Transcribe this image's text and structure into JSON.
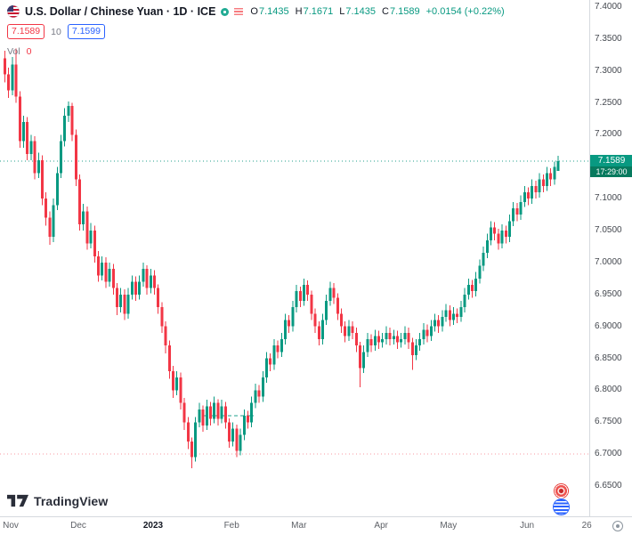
{
  "header": {
    "title": "U.S. Dollar / Chinese Yuan · 1D · ICE",
    "ohlc": {
      "o_label": "O",
      "open": "7.1435",
      "h_label": "H",
      "high": "7.1671",
      "l_label": "L",
      "low": "7.1435",
      "c_label": "C",
      "close": "7.1589",
      "change": "+0.0154 (+0.22%)"
    },
    "series_row": {
      "left_value": "7.1589",
      "length": "10",
      "right_value": "7.1599"
    },
    "volume": {
      "label": "Vol",
      "value": "0"
    }
  },
  "price_axis": {
    "badge": {
      "price": 7.1589,
      "text": "7.1589",
      "countdown": "17:29:00"
    }
  },
  "footer": {
    "logo_text": "TradingView"
  },
  "colors": {
    "up_candle": "#089981",
    "down_candle": "#f23645",
    "badge_green": "#089981",
    "countdown_green": "#077a5e",
    "badge_red": "#f23645",
    "badge_blue": "#2962ff",
    "change_green": "#089981",
    "axis_text": "#44484f"
  },
  "chart_data": {
    "type": "candlestick",
    "title": "U.S. Dollar / Chinese Yuan · 1D · ICE",
    "ylim": [
      6.65,
      7.4
    ],
    "grid": false,
    "last_price": 7.1589,
    "y_ticks": [
      {
        "price": 7.4,
        "text": "7.4000"
      },
      {
        "price": 7.35,
        "text": "7.3500"
      },
      {
        "price": 7.3,
        "text": "7.3000"
      },
      {
        "price": 7.25,
        "text": "7.2500"
      },
      {
        "price": 7.2,
        "text": "7.2000"
      },
      {
        "price": 7.1,
        "text": "7.1000"
      },
      {
        "price": 7.05,
        "text": "7.0500"
      },
      {
        "price": 7.0,
        "text": "7.0000"
      },
      {
        "price": 6.95,
        "text": "6.9500"
      },
      {
        "price": 6.9,
        "text": "6.9000"
      },
      {
        "price": 6.85,
        "text": "6.8500"
      },
      {
        "price": 6.8,
        "text": "6.8000"
      },
      {
        "price": 6.75,
        "text": "6.7500"
      },
      {
        "price": 6.7,
        "text": "6.7000"
      },
      {
        "price": 6.65,
        "text": "6.6500"
      }
    ],
    "x_ticks": [
      {
        "label": "Nov",
        "index": 0
      },
      {
        "label": "Dec",
        "index": 20
      },
      {
        "label": "2023",
        "index": 40,
        "year": true
      },
      {
        "label": "Feb",
        "index": 61
      },
      {
        "label": "Mar",
        "index": 79
      },
      {
        "label": "Apr",
        "index": 101
      },
      {
        "label": "May",
        "index": 119
      },
      {
        "label": "Jun",
        "index": 140
      },
      {
        "label": "26",
        "index": 156
      }
    ],
    "levels": [
      {
        "name": "last-price-line",
        "price": 7.1589,
        "color": "#089981",
        "style": "dotted",
        "opacity": 0.9
      },
      {
        "name": "low-level-line",
        "price": 6.7,
        "color": "#f23645",
        "style": "dotted",
        "opacity": 0.5
      },
      {
        "name": "support-segment",
        "price": 6.76,
        "x1": 228,
        "x2": 285,
        "color": "#089981",
        "style": "dashed",
        "opacity": 0.9
      }
    ],
    "ohlc_order": [
      "open",
      "high",
      "low",
      "close"
    ],
    "candles": [
      [
        7.32,
        7.332,
        7.282,
        7.295
      ],
      [
        7.295,
        7.305,
        7.258,
        7.27
      ],
      [
        7.27,
        7.322,
        7.262,
        7.31
      ],
      [
        7.31,
        7.335,
        7.25,
        7.26
      ],
      [
        7.26,
        7.268,
        7.18,
        7.19
      ],
      [
        7.19,
        7.23,
        7.18,
        7.22
      ],
      [
        7.22,
        7.228,
        7.16,
        7.17
      ],
      [
        7.17,
        7.2,
        7.16,
        7.19
      ],
      [
        7.19,
        7.198,
        7.13,
        7.14
      ],
      [
        7.14,
        7.172,
        7.132,
        7.16
      ],
      [
        7.16,
        7.168,
        7.09,
        7.1
      ],
      [
        7.1,
        7.11,
        7.058,
        7.07
      ],
      [
        7.07,
        7.08,
        7.028,
        7.04
      ],
      [
        7.04,
        7.1,
        7.032,
        7.09
      ],
      [
        7.09,
        7.15,
        7.082,
        7.14
      ],
      [
        7.14,
        7.2,
        7.132,
        7.19
      ],
      [
        7.19,
        7.242,
        7.182,
        7.23
      ],
      [
        7.23,
        7.252,
        7.22,
        7.245
      ],
      [
        7.245,
        7.25,
        7.19,
        7.2
      ],
      [
        7.2,
        7.208,
        7.12,
        7.13
      ],
      [
        7.13,
        7.138,
        7.05,
        7.06
      ],
      [
        7.06,
        7.092,
        7.05,
        7.08
      ],
      [
        7.08,
        7.088,
        7.02,
        7.03
      ],
      [
        7.03,
        7.062,
        7.022,
        7.05
      ],
      [
        7.05,
        7.058,
        7.0,
        7.01
      ],
      [
        7.01,
        7.018,
        6.97,
        6.98
      ],
      [
        6.98,
        7.01,
        6.972,
        7.0
      ],
      [
        7.0,
        7.008,
        6.96,
        6.97
      ],
      [
        6.97,
        7.0,
        6.962,
        6.99
      ],
      [
        6.99,
        6.998,
        6.95,
        6.96
      ],
      [
        6.96,
        6.968,
        6.918,
        6.93
      ],
      [
        6.93,
        6.96,
        6.922,
        6.95
      ],
      [
        6.95,
        6.958,
        6.91,
        6.92
      ],
      [
        6.92,
        6.96,
        6.912,
        6.95
      ],
      [
        6.95,
        6.98,
        6.942,
        6.97
      ],
      [
        6.97,
        6.978,
        6.94,
        6.95
      ],
      [
        6.95,
        6.98,
        6.942,
        6.97
      ],
      [
        6.97,
        7.0,
        6.962,
        6.99
      ],
      [
        6.99,
        6.996,
        6.95,
        6.96
      ],
      [
        6.96,
        6.99,
        6.952,
        6.98
      ],
      [
        6.98,
        6.988,
        6.95,
        6.96
      ],
      [
        6.96,
        6.966,
        6.92,
        6.93
      ],
      [
        6.93,
        6.938,
        6.89,
        6.9
      ],
      [
        6.9,
        6.908,
        6.858,
        6.87
      ],
      [
        6.87,
        6.878,
        6.818,
        6.83
      ],
      [
        6.83,
        6.838,
        6.788,
        6.8
      ],
      [
        6.8,
        6.83,
        6.792,
        6.82
      ],
      [
        6.82,
        6.828,
        6.77,
        6.78
      ],
      [
        6.78,
        6.788,
        6.738,
        6.75
      ],
      [
        6.75,
        6.758,
        6.708,
        6.72
      ],
      [
        6.72,
        6.726,
        6.678,
        6.695
      ],
      [
        6.695,
        6.758,
        6.688,
        6.75
      ],
      [
        6.75,
        6.78,
        6.742,
        6.77
      ],
      [
        6.77,
        6.776,
        6.735,
        6.745
      ],
      [
        6.745,
        6.785,
        6.738,
        6.775
      ],
      [
        6.775,
        6.782,
        6.745,
        6.755
      ],
      [
        6.755,
        6.79,
        6.748,
        6.78
      ],
      [
        6.78,
        6.786,
        6.745,
        6.755
      ],
      [
        6.755,
        6.785,
        6.748,
        6.775
      ],
      [
        6.775,
        6.782,
        6.74,
        6.75
      ],
      [
        6.75,
        6.756,
        6.71,
        6.72
      ],
      [
        6.72,
        6.75,
        6.712,
        6.74
      ],
      [
        6.74,
        6.746,
        6.695,
        6.705
      ],
      [
        6.705,
        6.74,
        6.698,
        6.73
      ],
      [
        6.73,
        6.77,
        6.722,
        6.76
      ],
      [
        6.76,
        6.768,
        6.74,
        6.75
      ],
      [
        6.75,
        6.79,
        6.742,
        6.78
      ],
      [
        6.78,
        6.81,
        6.772,
        6.8
      ],
      [
        6.8,
        6.808,
        6.78,
        6.79
      ],
      [
        6.79,
        6.83,
        6.782,
        6.82
      ],
      [
        6.82,
        6.86,
        6.812,
        6.85
      ],
      [
        6.85,
        6.858,
        6.83,
        6.84
      ],
      [
        6.84,
        6.88,
        6.832,
        6.87
      ],
      [
        6.87,
        6.878,
        6.85,
        6.86
      ],
      [
        6.86,
        6.89,
        6.852,
        6.88
      ],
      [
        6.88,
        6.92,
        6.872,
        6.91
      ],
      [
        6.91,
        6.918,
        6.89,
        6.9
      ],
      [
        6.9,
        6.94,
        6.892,
        6.93
      ],
      [
        6.93,
        6.965,
        6.922,
        6.955
      ],
      [
        6.955,
        6.962,
        6.93,
        6.94
      ],
      [
        6.94,
        6.975,
        6.932,
        6.965
      ],
      [
        6.965,
        6.972,
        6.94,
        6.95
      ],
      [
        6.95,
        6.956,
        6.91,
        6.92
      ],
      [
        6.92,
        6.928,
        6.89,
        6.9
      ],
      [
        6.9,
        6.908,
        6.87,
        6.88
      ],
      [
        6.88,
        6.92,
        6.872,
        6.91
      ],
      [
        6.91,
        6.95,
        6.902,
        6.94
      ],
      [
        6.94,
        6.97,
        6.932,
        6.96
      ],
      [
        6.96,
        6.968,
        6.935,
        6.945
      ],
      [
        6.945,
        6.952,
        6.91,
        6.92
      ],
      [
        6.92,
        6.928,
        6.89,
        6.9
      ],
      [
        6.9,
        6.908,
        6.875,
        6.885
      ],
      [
        6.885,
        6.91,
        6.877,
        6.9
      ],
      [
        6.9,
        6.908,
        6.88,
        6.89
      ],
      [
        6.89,
        6.898,
        6.86,
        6.87
      ],
      [
        6.87,
        6.876,
        6.805,
        6.835
      ],
      [
        6.835,
        6.87,
        6.827,
        6.86
      ],
      [
        6.86,
        6.89,
        6.852,
        6.88
      ],
      [
        6.88,
        6.888,
        6.86,
        6.87
      ],
      [
        6.87,
        6.895,
        6.862,
        6.885
      ],
      [
        6.885,
        6.893,
        6.865,
        6.875
      ],
      [
        6.875,
        6.89,
        6.867,
        6.88
      ],
      [
        6.88,
        6.9,
        6.872,
        6.89
      ],
      [
        6.89,
        6.898,
        6.87,
        6.88
      ],
      [
        6.88,
        6.895,
        6.872,
        6.885
      ],
      [
        6.885,
        6.893,
        6.865,
        6.875
      ],
      [
        6.875,
        6.89,
        6.867,
        6.88
      ],
      [
        6.88,
        6.9,
        6.872,
        6.89
      ],
      [
        6.89,
        6.898,
        6.865,
        6.875
      ],
      [
        6.875,
        6.882,
        6.832,
        6.855
      ],
      [
        6.855,
        6.88,
        6.847,
        6.87
      ],
      [
        6.87,
        6.89,
        6.862,
        6.88
      ],
      [
        6.88,
        6.905,
        6.872,
        6.895
      ],
      [
        6.895,
        6.903,
        6.875,
        6.885
      ],
      [
        6.885,
        6.91,
        6.877,
        6.9
      ],
      [
        6.9,
        6.92,
        6.892,
        6.91
      ],
      [
        6.91,
        6.918,
        6.89,
        6.9
      ],
      [
        6.9,
        6.925,
        6.892,
        6.915
      ],
      [
        6.915,
        6.935,
        6.907,
        6.925
      ],
      [
        6.925,
        6.933,
        6.9,
        6.91
      ],
      [
        6.91,
        6.93,
        6.902,
        6.92
      ],
      [
        6.92,
        6.928,
        6.905,
        6.915
      ],
      [
        6.915,
        6.94,
        6.907,
        6.93
      ],
      [
        6.93,
        6.96,
        6.922,
        6.95
      ],
      [
        6.95,
        6.975,
        6.942,
        6.965
      ],
      [
        6.965,
        6.973,
        6.945,
        6.955
      ],
      [
        6.955,
        6.985,
        6.947,
        6.975
      ],
      [
        6.975,
        7.005,
        6.967,
        6.995
      ],
      [
        6.995,
        7.025,
        6.987,
        7.015
      ],
      [
        7.015,
        7.045,
        7.007,
        7.035
      ],
      [
        7.035,
        7.065,
        7.027,
        7.055
      ],
      [
        7.055,
        7.063,
        7.035,
        7.045
      ],
      [
        7.045,
        7.053,
        7.02,
        7.03
      ],
      [
        7.03,
        7.06,
        7.022,
        7.05
      ],
      [
        7.05,
        7.058,
        7.03,
        7.04
      ],
      [
        7.04,
        7.075,
        7.032,
        7.065
      ],
      [
        7.065,
        7.095,
        7.057,
        7.085
      ],
      [
        7.085,
        7.093,
        7.065,
        7.075
      ],
      [
        7.075,
        7.105,
        7.067,
        7.095
      ],
      [
        7.095,
        7.12,
        7.087,
        7.11
      ],
      [
        7.11,
        7.118,
        7.09,
        7.1
      ],
      [
        7.1,
        7.13,
        7.092,
        7.12
      ],
      [
        7.12,
        7.128,
        7.1,
        7.11
      ],
      [
        7.11,
        7.14,
        7.102,
        7.13
      ],
      [
        7.13,
        7.138,
        7.11,
        7.12
      ],
      [
        7.12,
        7.15,
        7.112,
        7.14
      ],
      [
        7.14,
        7.148,
        7.12,
        7.13
      ],
      [
        7.13,
        7.158,
        7.122,
        7.15
      ],
      [
        7.1435,
        7.1671,
        7.1435,
        7.1589
      ]
    ]
  }
}
